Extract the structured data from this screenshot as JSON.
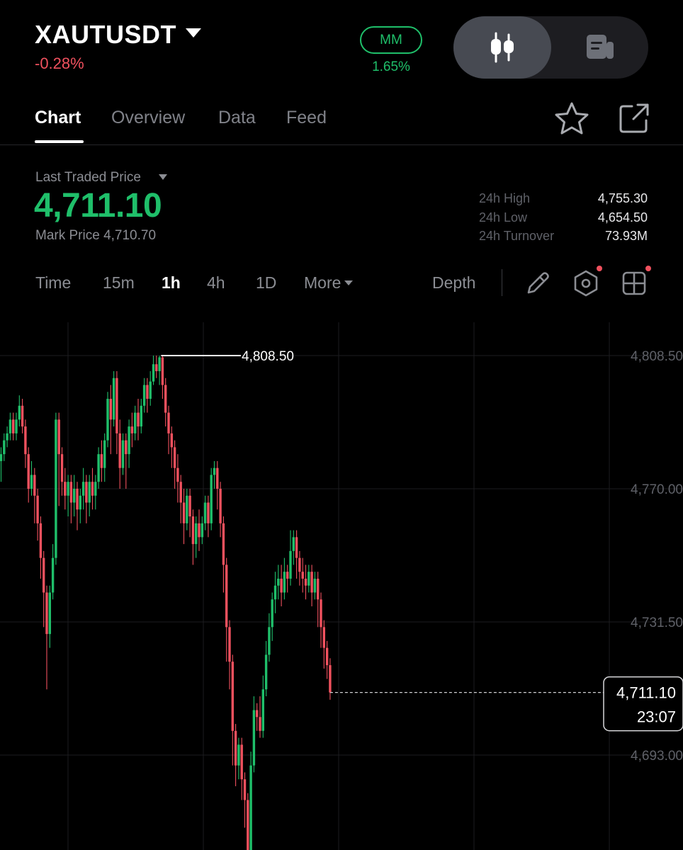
{
  "header": {
    "symbol": "XAUTUSDT",
    "change": "-0.28%",
    "mm_label": "MM",
    "mm_value": "1.65%",
    "view_toggle": {
      "left_icon": "candlestick-icon",
      "right_icon": "orderbook-icon"
    }
  },
  "tabs": [
    {
      "label": "Chart",
      "active": true
    },
    {
      "label": "Overview",
      "active": false
    },
    {
      "label": "Data",
      "active": false
    },
    {
      "label": "Feed",
      "active": false
    }
  ],
  "tab_icons": [
    "star-icon",
    "share-icon"
  ],
  "price": {
    "last_traded_label": "Last Traded Price",
    "last_traded_value": "4,711.10",
    "mark_price_label": "Mark Price 4,710.70",
    "stats": [
      {
        "label": "24h High",
        "value": "4,755.30"
      },
      {
        "label": "24h Low",
        "value": "4,654.50"
      },
      {
        "label": "24h Turnover",
        "value": "73.93M"
      }
    ]
  },
  "intervals": {
    "items": [
      "Time",
      "15m",
      "1h",
      "4h",
      "1D"
    ],
    "active": "1h",
    "more_label": "More",
    "depth_label": "Depth",
    "tools": [
      "pencil-icon",
      "hexagon-settings-icon",
      "grid-layout-icon"
    ]
  },
  "colors": {
    "up": "#1fbf6a",
    "down": "#f0515e",
    "background": "#000000",
    "muted": "#8b8d93"
  },
  "chart_data": {
    "type": "candlestick",
    "y_ticks": [
      "4,808.50",
      "4,770.00",
      "4,731.50",
      "4,693.00"
    ],
    "y_tick_values": [
      4808.5,
      4770.0,
      4731.5,
      4693.0
    ],
    "high_marker": {
      "value": 4808.5,
      "label": "4,808.50"
    },
    "last_price": {
      "value": 4711.1,
      "label": "4,711.10",
      "countdown": "23:07"
    },
    "candles": [
      [
        4778,
        4780,
        4772,
        4782
      ],
      [
        4780,
        4784,
        4778,
        4786
      ],
      [
        4784,
        4786,
        4782,
        4788
      ],
      [
        4786,
        4790,
        4784,
        4792
      ],
      [
        4790,
        4786,
        4784,
        4792
      ],
      [
        4786,
        4790,
        4784,
        4792
      ],
      [
        4790,
        4794,
        4788,
        4797
      ],
      [
        4794,
        4788,
        4786,
        4796
      ],
      [
        4788,
        4780,
        4776,
        4790
      ],
      [
        4780,
        4770,
        4766,
        4782
      ],
      [
        4770,
        4774,
        4768,
        4778
      ],
      [
        4774,
        4768,
        4760,
        4776
      ],
      [
        4768,
        4760,
        4755,
        4770
      ],
      [
        4760,
        4750,
        4744,
        4762
      ],
      [
        4750,
        4740,
        4730,
        4752
      ],
      [
        4740,
        4728,
        4712,
        4742
      ],
      [
        4728,
        4740,
        4724,
        4742
      ],
      [
        4740,
        4750,
        4738,
        4754
      ],
      [
        4750,
        4790,
        4748,
        4792
      ],
      [
        4790,
        4780,
        4765,
        4792
      ],
      [
        4780,
        4772,
        4768,
        4782
      ],
      [
        4772,
        4768,
        4764,
        4776
      ],
      [
        4768,
        4772,
        4762,
        4774
      ],
      [
        4772,
        4766,
        4760,
        4774
      ],
      [
        4766,
        4770,
        4762,
        4774
      ],
      [
        4770,
        4764,
        4758,
        4772
      ],
      [
        4764,
        4768,
        4760,
        4770
      ],
      [
        4768,
        4772,
        4764,
        4776
      ],
      [
        4772,
        4766,
        4760,
        4774
      ],
      [
        4766,
        4772,
        4762,
        4774
      ],
      [
        4772,
        4768,
        4764,
        4776
      ],
      [
        4768,
        4772,
        4764,
        4774
      ],
      [
        4772,
        4780,
        4770,
        4782
      ],
      [
        4780,
        4776,
        4772,
        4784
      ],
      [
        4776,
        4784,
        4772,
        4786
      ],
      [
        4784,
        4796,
        4782,
        4798
      ],
      [
        4796,
        4790,
        4780,
        4800
      ],
      [
        4790,
        4802,
        4788,
        4804
      ],
      [
        4802,
        4786,
        4780,
        4804
      ],
      [
        4786,
        4776,
        4770,
        4790
      ],
      [
        4776,
        4784,
        4774,
        4786
      ],
      [
        4784,
        4780,
        4770,
        4786
      ],
      [
        4780,
        4788,
        4776,
        4790
      ],
      [
        4788,
        4786,
        4782,
        4792
      ],
      [
        4786,
        4792,
        4784,
        4794
      ],
      [
        4792,
        4788,
        4784,
        4796
      ],
      [
        4788,
        4794,
        4786,
        4796
      ],
      [
        4794,
        4800,
        4792,
        4802
      ],
      [
        4800,
        4796,
        4792,
        4802
      ],
      [
        4796,
        4801,
        4794,
        4804
      ],
      [
        4801,
        4806,
        4800,
        4808.5
      ],
      [
        4806,
        4804,
        4802,
        4808.5
      ],
      [
        4804,
        4808,
        4800,
        4808.5
      ],
      [
        4808,
        4800,
        4796,
        4808.5
      ],
      [
        4800,
        4792,
        4788,
        4802
      ],
      [
        4792,
        4786,
        4780,
        4794
      ],
      [
        4786,
        4782,
        4776,
        4788
      ],
      [
        4782,
        4776,
        4770,
        4784
      ],
      [
        4776,
        4772,
        4766,
        4780
      ],
      [
        4772,
        4766,
        4760,
        4774
      ],
      [
        4766,
        4760,
        4754,
        4770
      ],
      [
        4760,
        4768,
        4758,
        4770
      ],
      [
        4768,
        4762,
        4756,
        4770
      ],
      [
        4762,
        4754,
        4748,
        4764
      ],
      [
        4754,
        4760,
        4750,
        4762
      ],
      [
        4760,
        4756,
        4752,
        4764
      ],
      [
        4756,
        4760,
        4754,
        4762
      ],
      [
        4760,
        4766,
        4758,
        4768
      ],
      [
        4766,
        4760,
        4756,
        4768
      ],
      [
        4760,
        4774,
        4758,
        4776
      ],
      [
        4774,
        4776,
        4770,
        4778
      ],
      [
        4776,
        4770,
        4764,
        4778
      ],
      [
        4770,
        4760,
        4756,
        4772
      ],
      [
        4760,
        4748,
        4740,
        4762
      ],
      [
        4748,
        4730,
        4720,
        4750
      ],
      [
        4730,
        4720,
        4712,
        4732
      ],
      [
        4720,
        4700,
        4690,
        4722
      ],
      [
        4700,
        4690,
        4684,
        4702
      ],
      [
        4690,
        4696,
        4686,
        4698
      ],
      [
        4696,
        4686,
        4680,
        4698
      ],
      [
        4686,
        4680,
        4672,
        4688
      ],
      [
        4680,
        4664,
        4655,
        4682
      ],
      [
        4664,
        4690,
        4662,
        4694
      ],
      [
        4690,
        4706,
        4688,
        4710
      ],
      [
        4706,
        4704,
        4700,
        4708
      ],
      [
        4704,
        4700,
        4698,
        4710
      ],
      [
        4700,
        4712,
        4698,
        4716
      ],
      [
        4712,
        4722,
        4710,
        4726
      ],
      [
        4722,
        4730,
        4720,
        4734
      ],
      [
        4730,
        4738,
        4726,
        4740
      ],
      [
        4738,
        4742,
        4734,
        4746
      ],
      [
        4742,
        4744,
        4738,
        4748
      ],
      [
        4744,
        4740,
        4736,
        4748
      ],
      [
        4740,
        4746,
        4738,
        4750
      ],
      [
        4746,
        4744,
        4740,
        4748
      ],
      [
        4744,
        4752,
        4742,
        4758
      ],
      [
        4752,
        4756,
        4748,
        4758
      ],
      [
        4756,
        4750,
        4744,
        4758
      ],
      [
        4750,
        4746,
        4742,
        4752
      ],
      [
        4746,
        4744,
        4740,
        4750
      ],
      [
        4744,
        4742,
        4738,
        4748
      ],
      [
        4742,
        4746,
        4740,
        4748
      ],
      [
        4746,
        4740,
        4736,
        4748
      ],
      [
        4740,
        4744,
        4738,
        4746
      ],
      [
        4744,
        4738,
        4730,
        4746
      ],
      [
        4738,
        4730,
        4724,
        4740
      ],
      [
        4730,
        4724,
        4718,
        4732
      ],
      [
        4724,
        4719,
        4715,
        4726
      ],
      [
        4719,
        4711.1,
        4709,
        4721
      ]
    ]
  }
}
